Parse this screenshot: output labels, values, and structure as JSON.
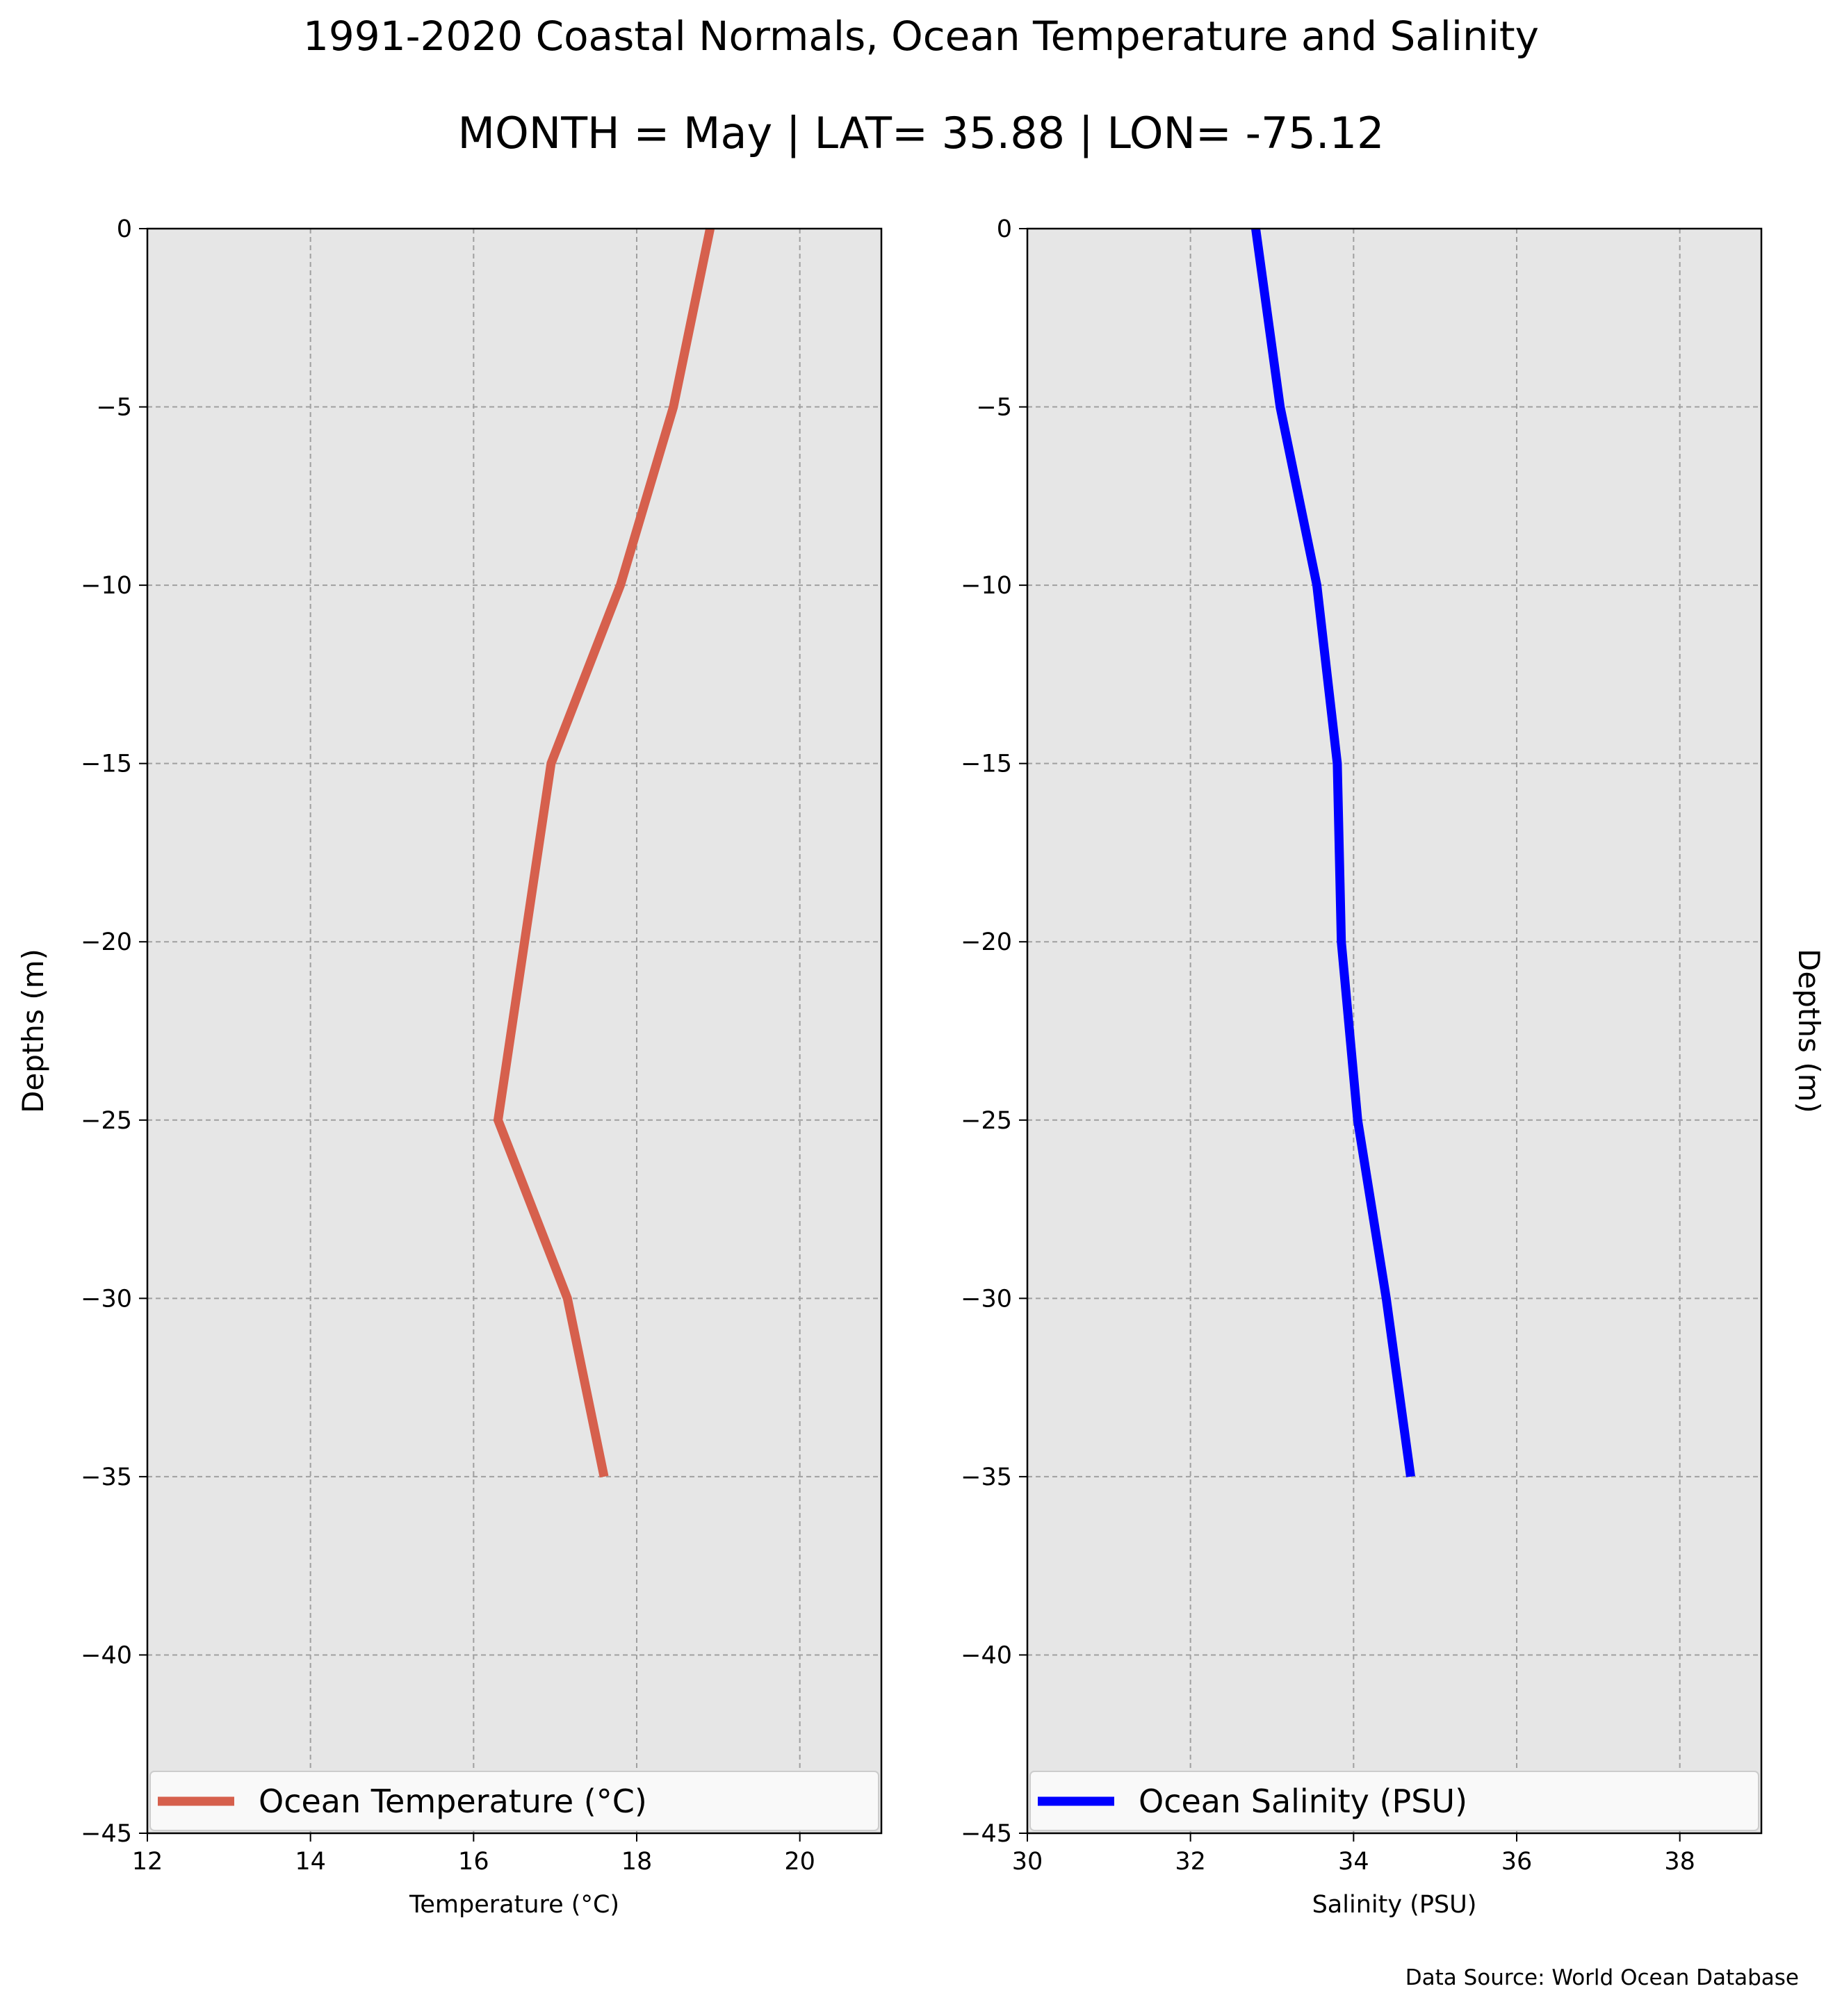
{
  "title": "1991-2020 Coastal Normals, Ocean Temperature and Salinity",
  "subtitle": "MONTH = May | LAT= 35.88 | LON= -75.12",
  "source": "Data Source: World Ocean Database",
  "chart_data": [
    {
      "type": "line",
      "xlabel": "Temperature ($^\\circ$C)",
      "xlabel_display": "Temperature (°C)",
      "ylabel": "Depths (m)",
      "xlim": [
        12,
        21
      ],
      "ylim": [
        -45,
        0
      ],
      "xticks": [
        12,
        14,
        16,
        18,
        20
      ],
      "yticks": [
        0,
        -5,
        -10,
        -15,
        -20,
        -25,
        -30,
        -35,
        -40,
        -45
      ],
      "grid": true,
      "background": "#e6e6e6",
      "legend_placement": "lower center",
      "series": [
        {
          "name": "Ocean Temperature (°C)",
          "color": "#d6604d",
          "x": [
            18.9,
            18.45,
            17.8,
            16.95,
            16.3,
            17.15,
            17.6
          ],
          "y": [
            0,
            -5,
            -10,
            -15,
            -25,
            -30,
            -35
          ]
        }
      ]
    },
    {
      "type": "line",
      "xlabel": "Salinity (PSU)",
      "ylabel": "Depths (m)",
      "ylabel_side": "right",
      "xlim": [
        30,
        39
      ],
      "ylim": [
        -45,
        0
      ],
      "xticks": [
        30,
        32,
        34,
        36,
        38
      ],
      "yticks": [
        0,
        -5,
        -10,
        -15,
        -20,
        -25,
        -30,
        -35,
        -40,
        -45
      ],
      "grid": true,
      "background": "#e6e6e6",
      "legend_placement": "lower center",
      "series": [
        {
          "name": "Ocean Salinity (PSU)",
          "color": "#0000ff",
          "x": [
            32.8,
            33.1,
            33.55,
            33.8,
            33.85,
            34.05,
            34.4,
            34.7
          ],
          "y": [
            0,
            -5,
            -10,
            -15,
            -20,
            -25,
            -30,
            -35
          ]
        }
      ]
    }
  ]
}
